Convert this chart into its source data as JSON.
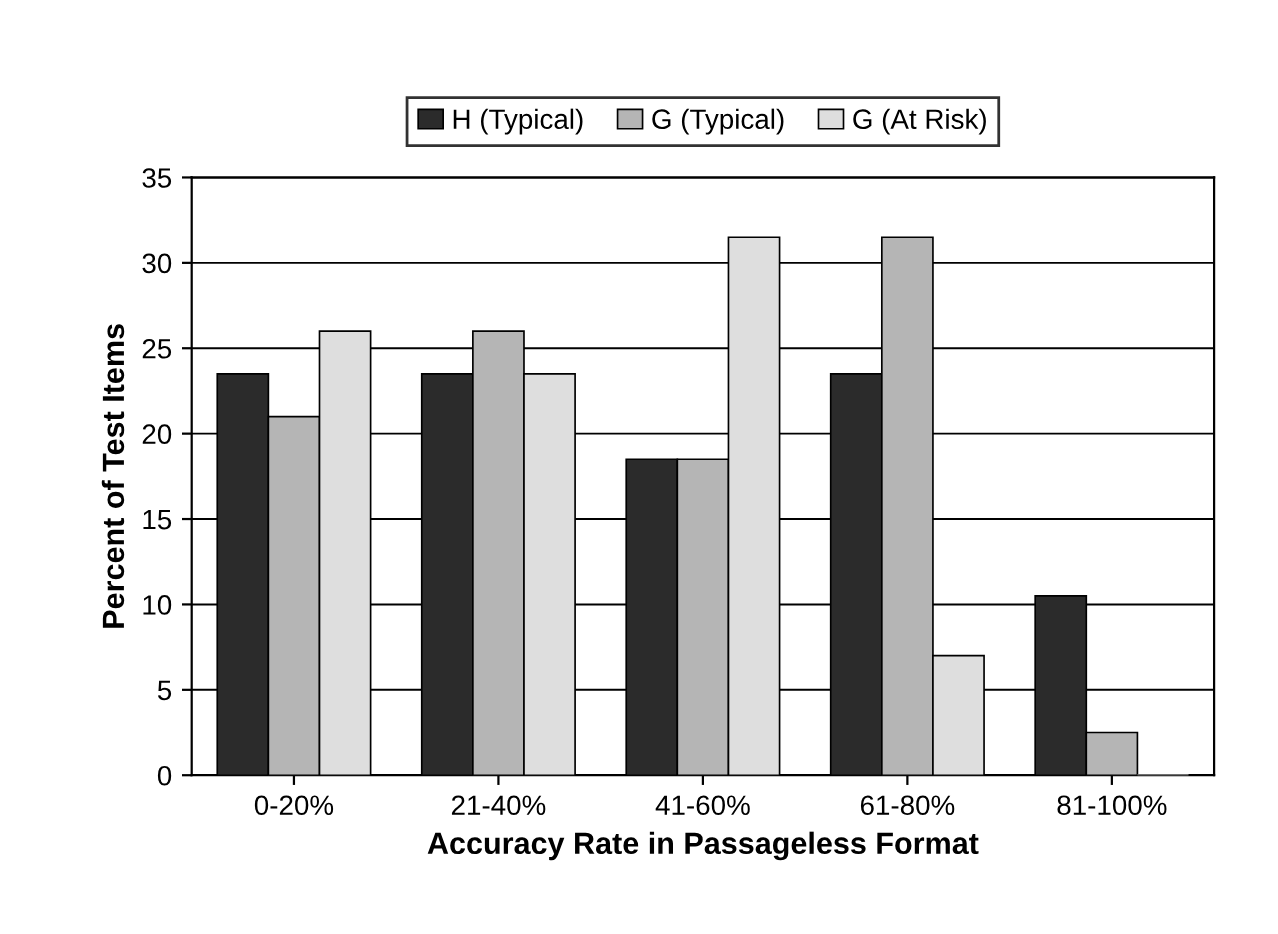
{
  "chart_data": {
    "type": "bar",
    "xlabel": "Accuracy Rate in Passageless Format",
    "ylabel": "Percent of Test Items",
    "categories": [
      "0-20%",
      "21-40%",
      "41-60%",
      "61-80%",
      "81-100%"
    ],
    "series": [
      {
        "name": "H (Typical)",
        "color": "#2b2b2b",
        "values": [
          23.5,
          23.5,
          18.5,
          23.5,
          10.5
        ]
      },
      {
        "name": "G (Typical)",
        "color": "#b5b5b5",
        "values": [
          21,
          26,
          18.5,
          31.5,
          2.5
        ]
      },
      {
        "name": "G (At Risk)",
        "color": "#dedede",
        "values": [
          26,
          23.5,
          31.5,
          7,
          0
        ]
      }
    ],
    "ylim": [
      0,
      35
    ],
    "yticks": [
      0,
      5,
      10,
      15,
      20,
      25,
      30,
      35
    ],
    "grid": "y",
    "legend": "top"
  }
}
